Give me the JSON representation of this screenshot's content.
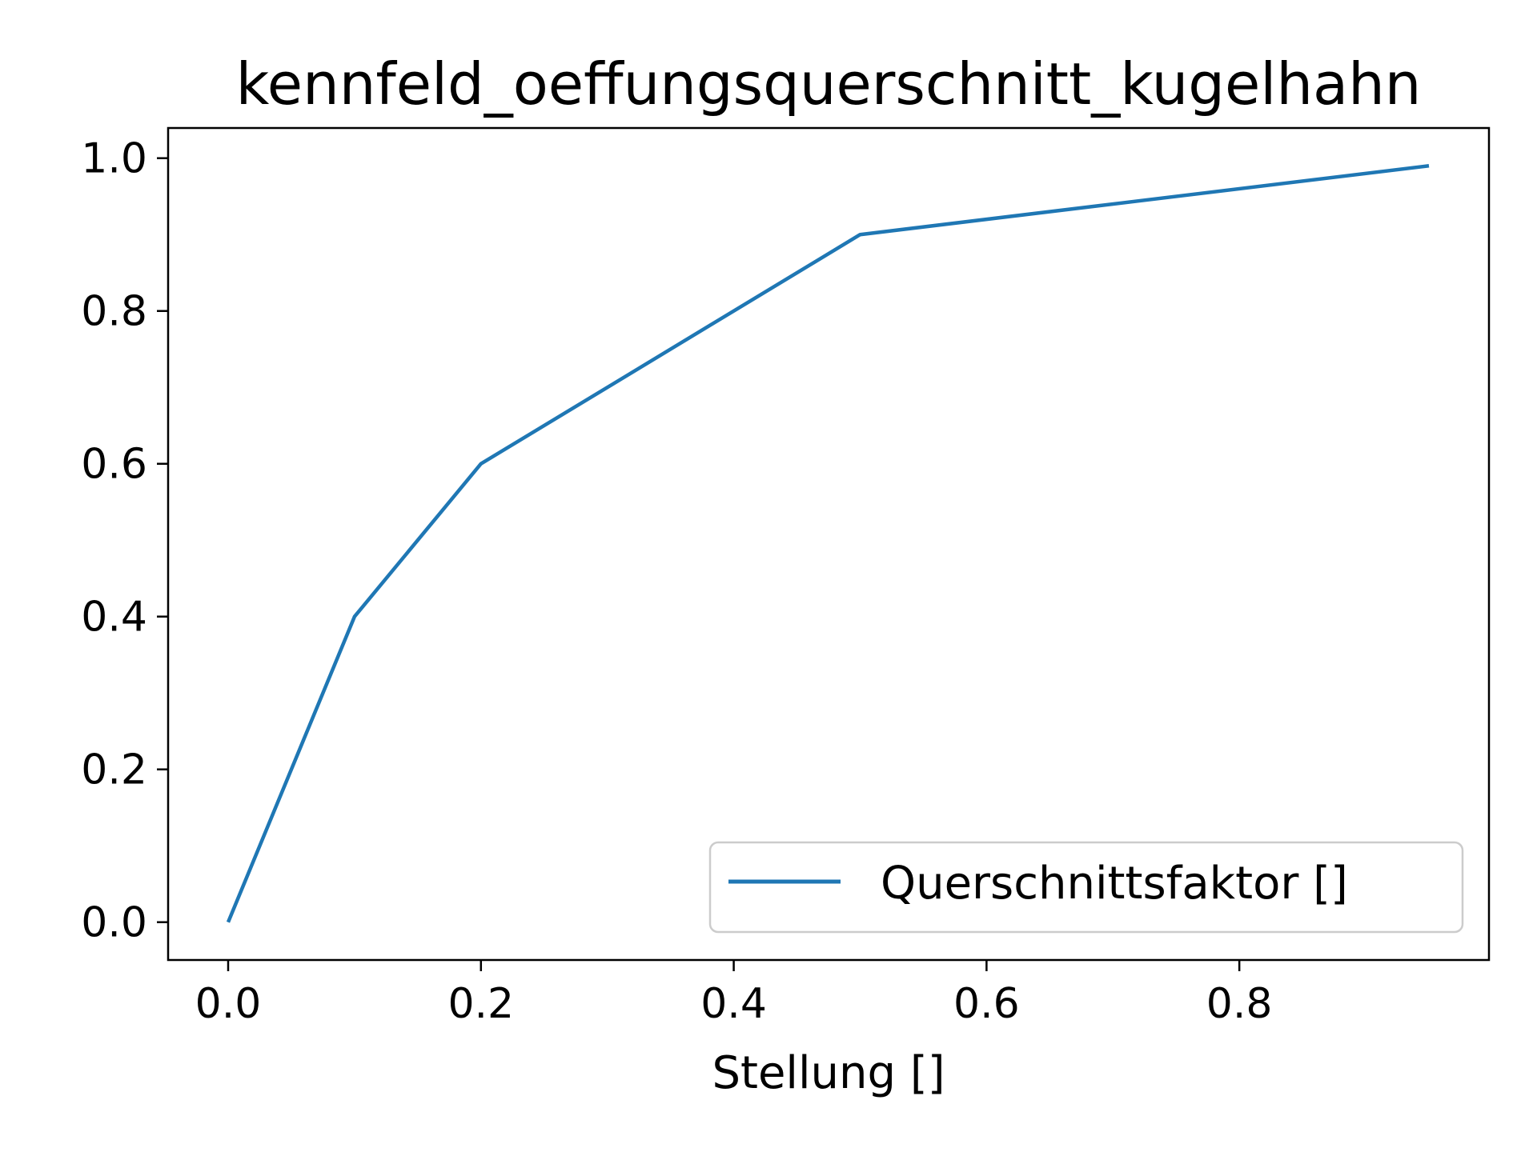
{
  "chart_data": {
    "type": "line",
    "title": "kennfeld_oeffungsquerschnitt_kugelhahn",
    "xlabel": "Stellung []",
    "ylabel": "",
    "xlim": [
      -0.0475,
      0.9975
    ],
    "ylim": [
      -0.0495,
      1.0395
    ],
    "x_ticks": [
      0.0,
      0.2,
      0.4,
      0.6,
      0.8
    ],
    "y_ticks": [
      0.0,
      0.2,
      0.4,
      0.6,
      0.8,
      1.0
    ],
    "x_tick_labels": [
      "0.0",
      "0.2",
      "0.4",
      "0.6",
      "0.8"
    ],
    "y_tick_labels": [
      "0.0",
      "0.2",
      "0.4",
      "0.6",
      "0.8",
      "1.0"
    ],
    "grid": false,
    "legend_position": "bottom-right",
    "series": [
      {
        "name": "Querschnittsfaktor []",
        "color": "#1f77b4",
        "x": [
          0.0,
          0.1,
          0.2,
          0.5,
          0.95
        ],
        "y": [
          0.0,
          0.4,
          0.6,
          0.9,
          0.99
        ]
      }
    ]
  }
}
